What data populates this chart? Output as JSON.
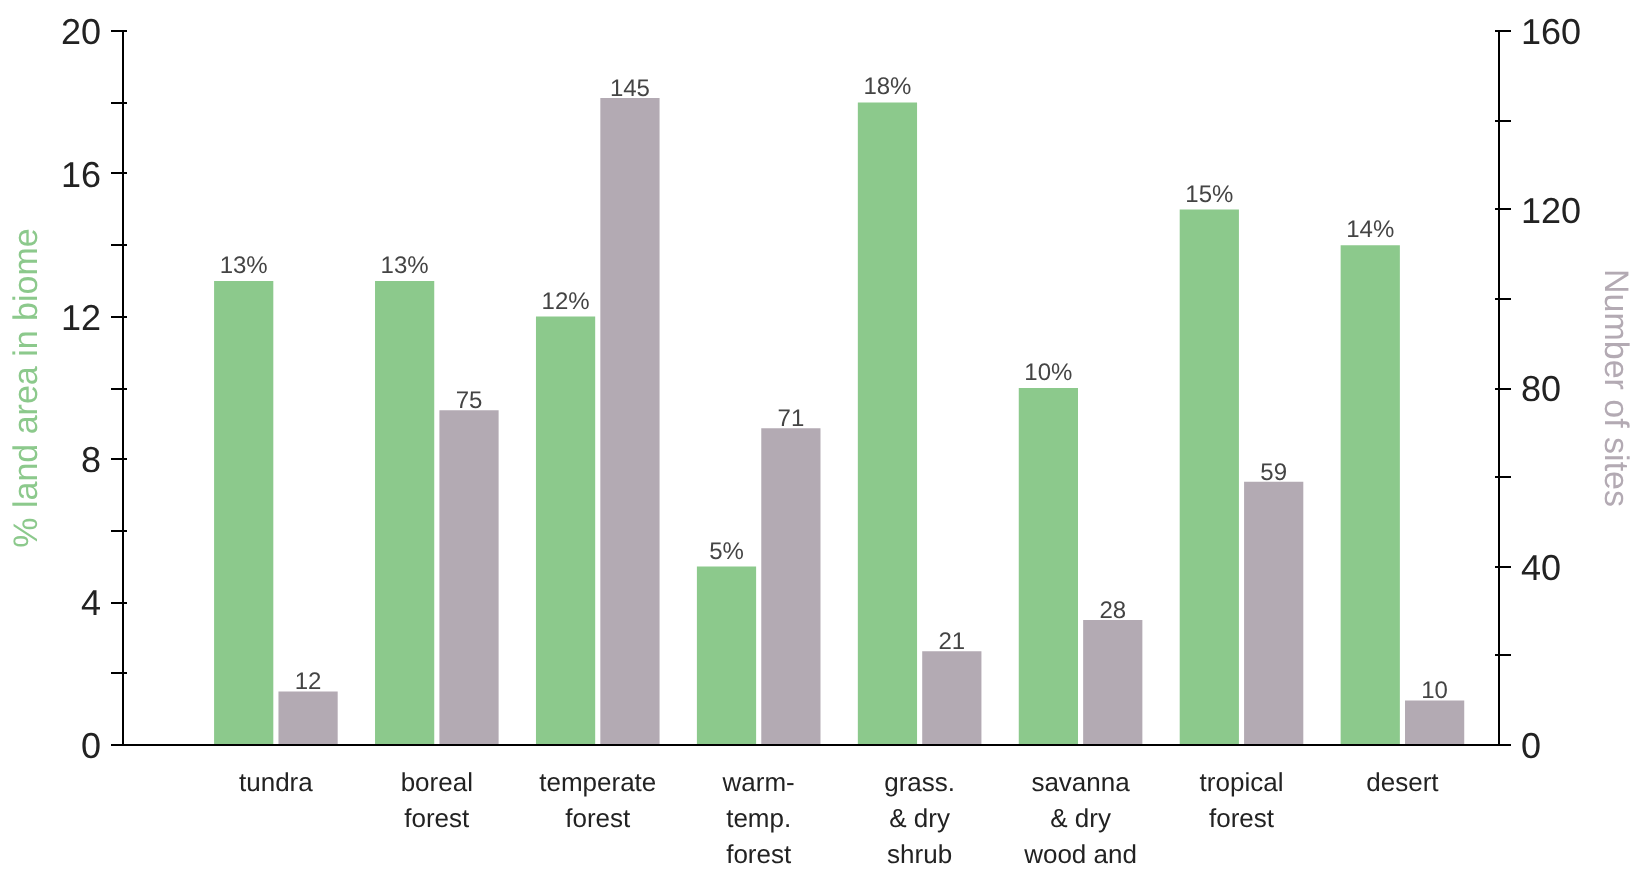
{
  "chart_data": {
    "type": "bar",
    "categories": [
      "tundra",
      "boreal\nforest",
      "temperate\nforest",
      "warm-\ntemp.\nforest",
      "grass.\n& dry\nshrub",
      "savanna\n& dry\nwood and",
      "tropical\nforest",
      "desert"
    ],
    "series": [
      {
        "color": "#8cc98c",
        "values": [
          13,
          13,
          12,
          5,
          18,
          10,
          15,
          14
        ],
        "value_labels": [
          "13%",
          "13%",
          "12%",
          "5%",
          "18%",
          "10%",
          "15%",
          "14%"
        ]
      },
      {
        "color": "#b3aab3",
        "axis": "y2",
        "values": [
          12,
          75,
          145,
          71,
          21,
          28,
          59,
          10
        ],
        "value_labels": [
          "12",
          "75",
          "145",
          "71",
          "21",
          "28",
          "59",
          "10"
        ]
      }
    ],
    "ylabel": "% land area in biome",
    "y2label": "Number of sites",
    "ylim": [
      0,
      20
    ],
    "yticks": [
      0,
      {
        "value": 2,
        "label": null
      },
      4,
      {
        "value": 6,
        "label": null
      },
      8,
      {
        "value": 10,
        "label": null
      },
      12,
      {
        "value": 14,
        "label": null
      },
      16,
      {
        "value": 18,
        "label": null
      },
      20
    ],
    "y2lim": [
      0,
      160
    ],
    "y2ticks": [
      0,
      {
        "value": 20,
        "label": null
      },
      40,
      {
        "value": 60,
        "label": null
      },
      80,
      {
        "value": 100,
        "label": null
      },
      120,
      {
        "value": 140,
        "label": null
      },
      160
    ],
    "grid": false
  }
}
